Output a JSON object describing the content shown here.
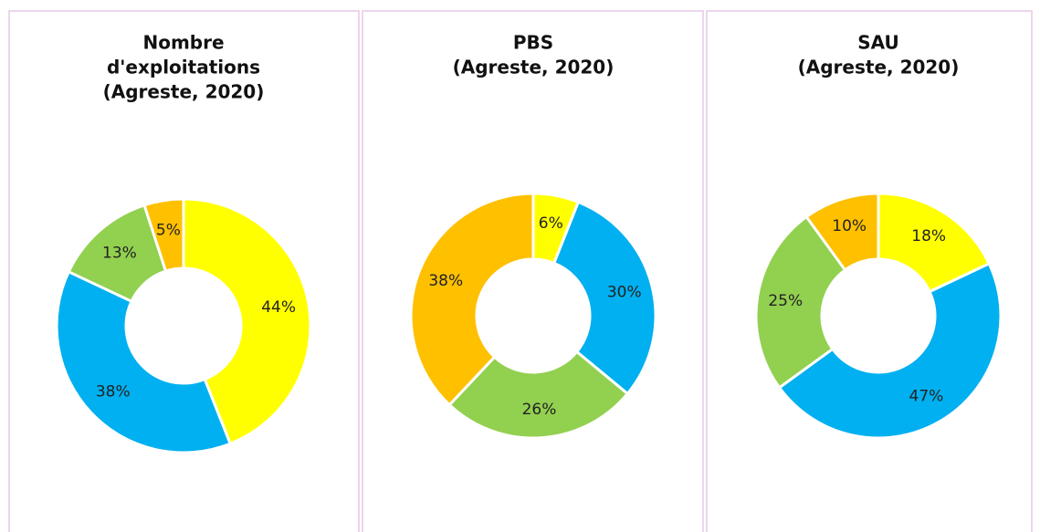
{
  "chart_data": [
    {
      "type": "donut",
      "title": [
        "Nombre",
        "d'exploitations",
        "(Agreste, 2020)"
      ],
      "values": [
        44,
        38,
        13,
        5
      ],
      "value_labels": [
        "44%",
        "38%",
        "13%",
        "5%"
      ],
      "colors": [
        "#ffff00",
        "#00b0f0",
        "#92d050",
        "#ffc000"
      ]
    },
    {
      "type": "donut",
      "title": [
        "PBS",
        "(Agreste, 2020)"
      ],
      "values": [
        6,
        30,
        26,
        38
      ],
      "value_labels": [
        "6%",
        "30%",
        "26%",
        "38%"
      ],
      "colors": [
        "#ffff00",
        "#00b0f0",
        "#92d050",
        "#ffc000"
      ]
    },
    {
      "type": "donut",
      "title": [
        "SAU",
        "(Agreste, 2020)"
      ],
      "values": [
        18,
        47,
        25,
        10
      ],
      "value_labels": [
        "18%",
        "47%",
        "25%",
        "10%"
      ],
      "colors": [
        "#ffff00",
        "#00b0f0",
        "#92d050",
        "#ffc000"
      ]
    }
  ]
}
